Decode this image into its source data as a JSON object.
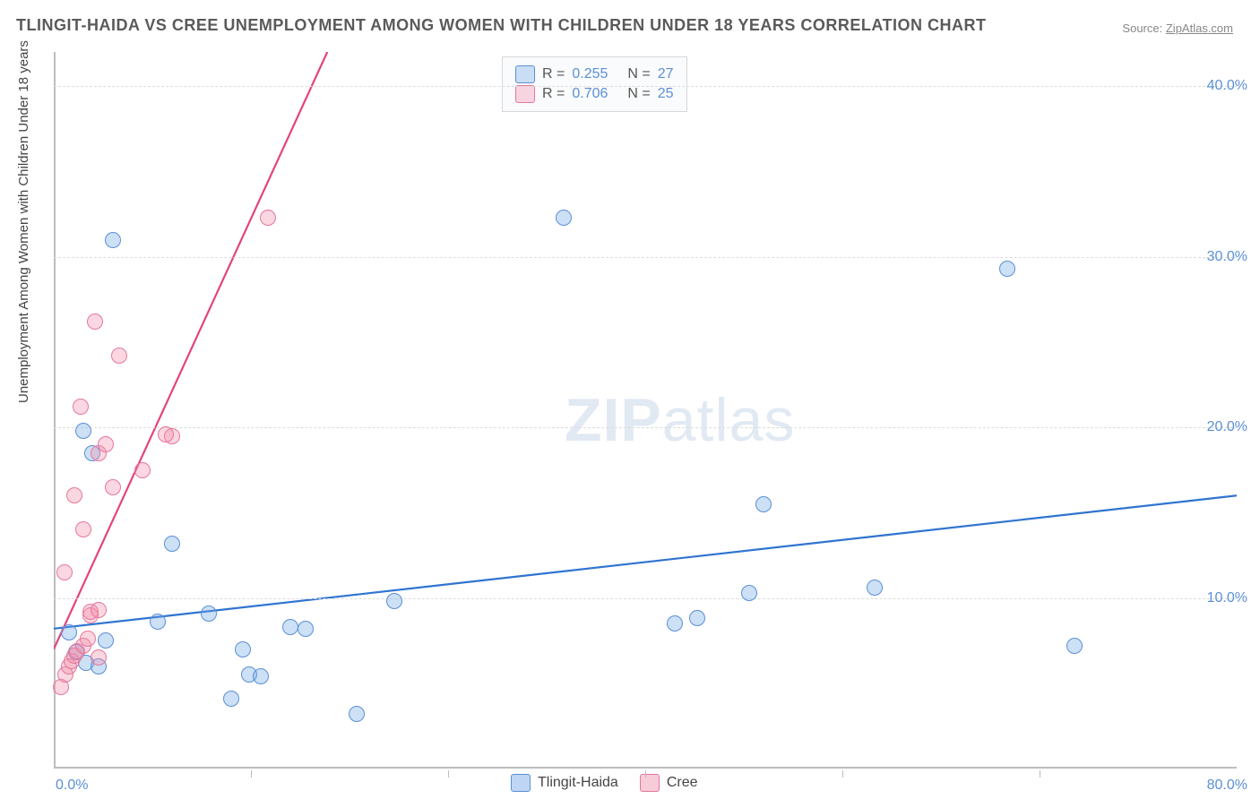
{
  "title": "TLINGIT-HAIDA VS CREE UNEMPLOYMENT AMONG WOMEN WITH CHILDREN UNDER 18 YEARS CORRELATION CHART",
  "source_label": "Source:",
  "source_site": "ZipAtlas.com",
  "watermark": {
    "bold": "ZIP",
    "light": "atlas"
  },
  "ylabel": "Unemployment Among Women with Children Under 18 years",
  "chart": {
    "type": "scatter",
    "xlim": [
      0,
      80
    ],
    "ylim": [
      0,
      42
    ],
    "y_ticks": [
      10.0,
      20.0,
      30.0,
      40.0
    ],
    "y_tick_labels": [
      "10.0%",
      "20.0%",
      "30.0%",
      "40.0%"
    ],
    "x_start_label": "0.0%",
    "x_end_label": "80.0%",
    "x_minor_ticks": [
      13.33,
      26.67,
      40.0,
      53.33,
      66.67
    ],
    "grid_color": "#dcdcdc",
    "axis_color": "#bdbdbd",
    "background": "#ffffff",
    "marker_radius": 9,
    "marker_stroke_width": 1.4,
    "series": [
      {
        "name": "Tlingit-Haida",
        "fill": "rgba(110,165,230,0.35)",
        "stroke": "#5b8fd6",
        "r_value": "0.255",
        "n_value": "27",
        "trend": {
          "x1": 0,
          "y1": 8.2,
          "x2": 80,
          "y2": 16.0,
          "color": "#2f74d0",
          "width": 2.2,
          "dash": ""
        },
        "points": [
          [
            2.0,
            19.8
          ],
          [
            2.6,
            18.5
          ],
          [
            4.0,
            31.0
          ],
          [
            1.0,
            8.0
          ],
          [
            1.5,
            6.8
          ],
          [
            2.2,
            6.2
          ],
          [
            3.0,
            6.0
          ],
          [
            3.5,
            7.5
          ],
          [
            7.0,
            8.6
          ],
          [
            10.5,
            9.1
          ],
          [
            12.0,
            4.1
          ],
          [
            12.8,
            7.0
          ],
          [
            13.2,
            5.5
          ],
          [
            14.0,
            5.4
          ],
          [
            16.0,
            8.3
          ],
          [
            17.0,
            8.2
          ],
          [
            23.0,
            9.8
          ],
          [
            8.0,
            13.2
          ],
          [
            20.5,
            3.2
          ],
          [
            42.0,
            8.5
          ],
          [
            43.5,
            8.8
          ],
          [
            47.0,
            10.3
          ],
          [
            48.0,
            15.5
          ],
          [
            55.5,
            10.6
          ],
          [
            64.5,
            29.3
          ],
          [
            69.0,
            7.2
          ],
          [
            34.5,
            32.3
          ]
        ]
      },
      {
        "name": "Cree",
        "fill": "rgba(240,140,170,0.35)",
        "stroke": "#e6779c",
        "r_value": "0.706",
        "n_value": "25",
        "trend": {
          "x1": 0,
          "y1": 7.0,
          "x2": 18.5,
          "y2": 42.0,
          "color": "#e4447a",
          "width": 2.2,
          "dash": "",
          "extend_dash_x2": 24,
          "extend_dash_y2": 52
        },
        "points": [
          [
            0.5,
            4.8
          ],
          [
            0.8,
            5.5
          ],
          [
            1.0,
            6.0
          ],
          [
            1.2,
            6.3
          ],
          [
            1.4,
            6.6
          ],
          [
            1.6,
            6.9
          ],
          [
            0.7,
            11.5
          ],
          [
            2.0,
            7.2
          ],
          [
            2.3,
            7.6
          ],
          [
            2.0,
            14.0
          ],
          [
            1.4,
            16.0
          ],
          [
            1.8,
            21.2
          ],
          [
            2.5,
            9.0
          ],
          [
            2.5,
            9.2
          ],
          [
            3.0,
            9.3
          ],
          [
            3.0,
            6.5
          ],
          [
            3.0,
            18.5
          ],
          [
            3.5,
            19.0
          ],
          [
            4.0,
            16.5
          ],
          [
            6.0,
            17.5
          ],
          [
            8.0,
            19.5
          ],
          [
            4.4,
            24.2
          ],
          [
            2.8,
            26.2
          ],
          [
            7.6,
            19.6
          ],
          [
            14.5,
            32.3
          ]
        ]
      }
    ]
  },
  "legend_top_label_r": "R =",
  "legend_top_label_n": "N =",
  "legend_bottom": [
    {
      "label": "Tlingit-Haida",
      "fill": "rgba(110,165,230,0.45)",
      "stroke": "#5b8fd6"
    },
    {
      "label": "Cree",
      "fill": "rgba(240,140,170,0.45)",
      "stroke": "#e6779c"
    }
  ]
}
